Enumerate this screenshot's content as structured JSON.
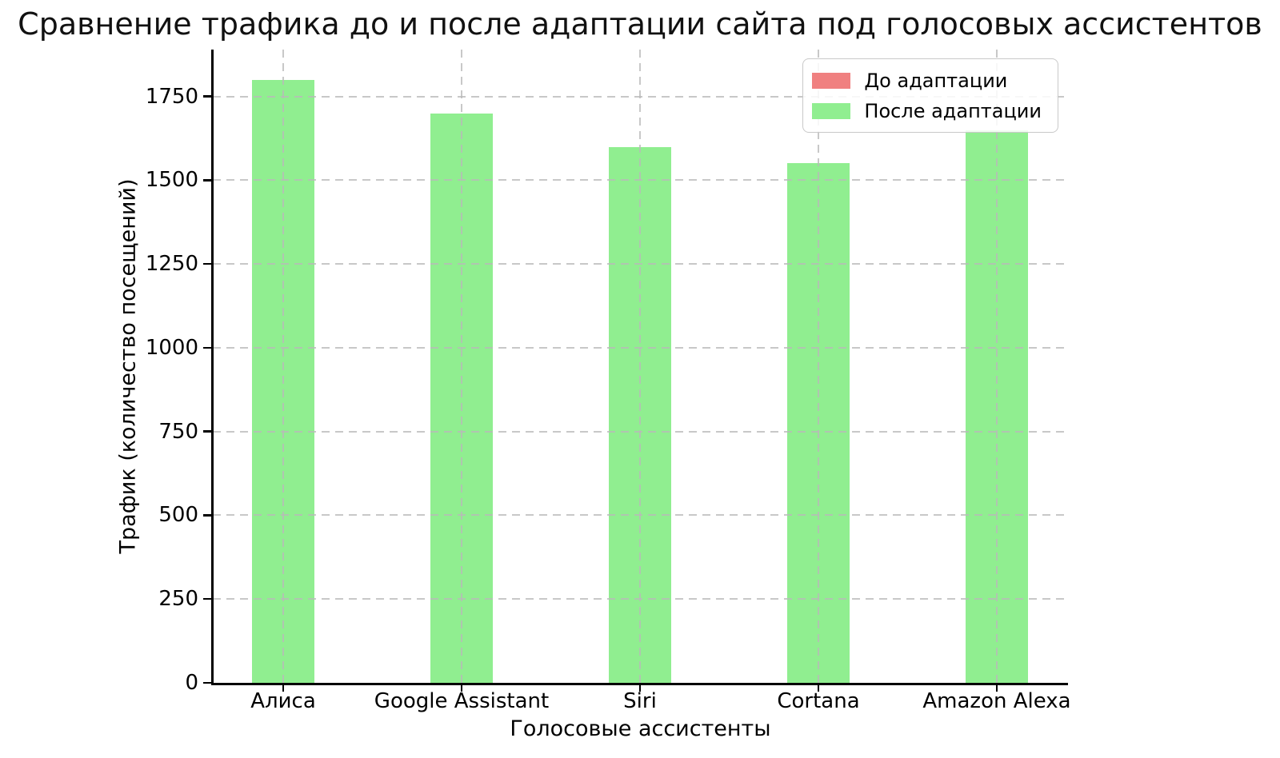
{
  "chart_data": {
    "type": "bar",
    "title": "Сравнение трафика до и после адаптации сайта под голосовых ассистентов",
    "xlabel": "Голосовые ассистенты",
    "ylabel": "Трафик (количество посещений)",
    "categories": [
      "Алиса",
      "Google Assistant",
      "Siri",
      "Cortana",
      "Amazon Alexa"
    ],
    "series": [
      {
        "name": "До адаптации",
        "color": "#F08080",
        "bars_visible": false,
        "note": "bars fully hidden behind the 'После адаптации' bars in the screenshot"
      },
      {
        "name": "После адаптации",
        "color": "#90EE90",
        "bars_visible": true,
        "values": [
          1800,
          1700,
          1600,
          1550,
          1650
        ]
      }
    ],
    "ylim": [
      0,
      1890
    ],
    "yticks": [
      0,
      250,
      500,
      750,
      1000,
      1250,
      1500,
      1750
    ],
    "grid": {
      "enabled": true,
      "style": "dashed",
      "color": "#c8c8c8",
      "drawn_above_bars": true
    },
    "legend": {
      "position": "upper right"
    },
    "spines": [
      "left",
      "bottom"
    ],
    "background": "#ffffff"
  }
}
